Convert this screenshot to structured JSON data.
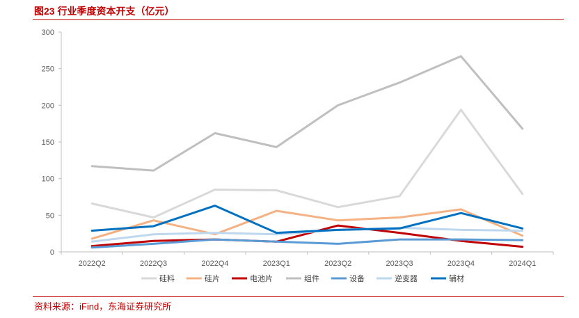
{
  "header": {
    "title": "图23  行业季度资本开支（亿元）"
  },
  "footer": {
    "source": "资料来源：iFind，东海证券研究所"
  },
  "chart_data": {
    "type": "line",
    "title": "图23  行业季度资本开支（亿元）",
    "xlabel": "",
    "ylabel": "",
    "ylim": [
      0,
      300
    ],
    "yticks": [
      0,
      50,
      100,
      150,
      200,
      250,
      300
    ],
    "grid": false,
    "legend_position": "bottom",
    "categories": [
      "2022Q2",
      "2022Q3",
      "2022Q4",
      "2023Q1",
      "2023Q2",
      "2023Q3",
      "2023Q4",
      "2024Q1"
    ],
    "series": [
      {
        "name": "硅料",
        "color": "#d9d9d9",
        "values": [
          66,
          47,
          85,
          84,
          61,
          76,
          194,
          79
        ]
      },
      {
        "name": "硅片",
        "color": "#f4b183",
        "values": [
          18,
          43,
          24,
          56,
          43,
          47,
          58,
          22
        ]
      },
      {
        "name": "电池片",
        "color": "#c00000",
        "values": [
          8,
          15,
          17,
          14,
          36,
          26,
          15,
          7
        ]
      },
      {
        "name": "组件",
        "color": "#bfbfbf",
        "values": [
          117,
          111,
          162,
          143,
          200,
          231,
          267,
          168
        ]
      },
      {
        "name": "设备",
        "color": "#5b9bd5",
        "values": [
          6,
          11,
          17,
          14,
          11,
          17,
          17,
          16
        ]
      },
      {
        "name": "逆变器",
        "color": "#bdd7ee",
        "values": [
          14,
          24,
          26,
          24,
          30,
          33,
          30,
          29
        ]
      },
      {
        "name": "辅材",
        "color": "#0070c0",
        "values": [
          29,
          35,
          63,
          26,
          30,
          32,
          53,
          32
        ]
      }
    ]
  }
}
